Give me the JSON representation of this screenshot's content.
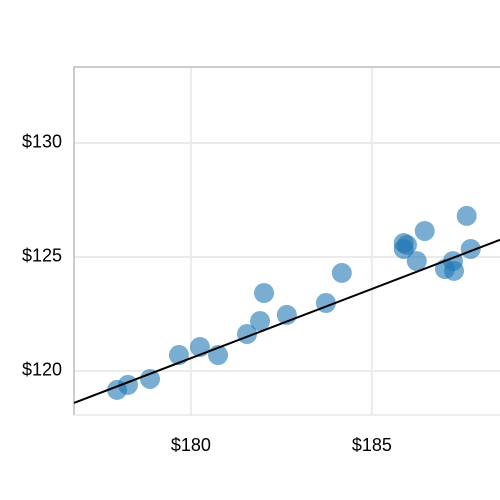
{
  "chart_data": {
    "type": "scatter",
    "x": [
      177.96,
      178.26,
      178.87,
      179.67,
      180.25,
      180.75,
      181.55,
      181.91,
      182.02,
      182.65,
      183.73,
      184.17,
      185.88,
      185.88,
      185.97,
      186.24,
      186.46,
      187.02,
      187.24,
      187.27,
      187.62,
      187.73
    ],
    "y": [
      119.17,
      119.39,
      119.65,
      120.7,
      121.05,
      120.7,
      121.62,
      122.19,
      123.42,
      122.46,
      122.98,
      124.3,
      125.61,
      125.35,
      125.53,
      124.82,
      126.14,
      124.47,
      124.82,
      124.39,
      126.8,
      125.35
    ],
    "color": "#1f77b4",
    "trendline": {
      "x": [
        176.77,
        188.54
      ],
      "y": [
        118.6,
        125.75
      ],
      "color": "#000000"
    },
    "xlim": [
      176.77,
      188.54
    ],
    "ylim": [
      118.07,
      133.33
    ],
    "xticks": [
      {
        "value": 180,
        "label": "$180"
      },
      {
        "value": 185,
        "label": "$185"
      }
    ],
    "yticks": [
      {
        "value": 120,
        "label": "$120"
      },
      {
        "value": 125,
        "label": "$125"
      },
      {
        "value": 130,
        "label": "$130"
      }
    ],
    "grid": true
  }
}
